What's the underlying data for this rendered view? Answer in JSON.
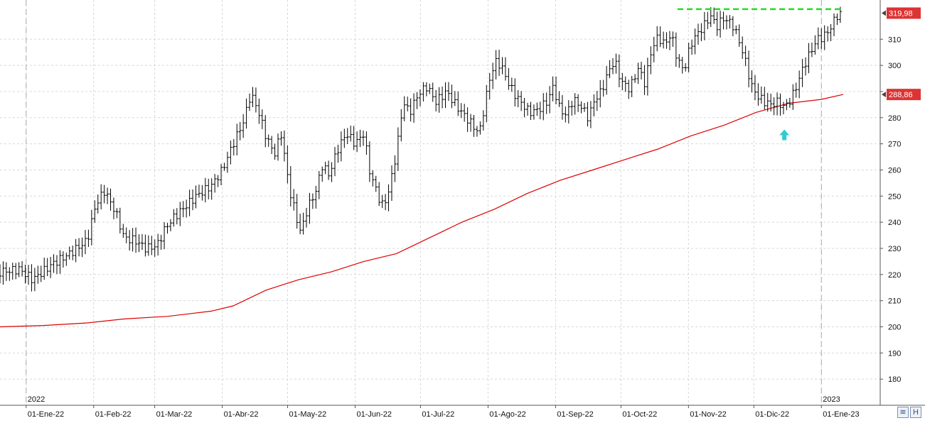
{
  "chart_data": {
    "type": "bar",
    "style": "ohlc-price-bars",
    "title": "",
    "xlabel": "",
    "ylabel": "",
    "ylim": [
      170,
      325
    ],
    "y_ticks": [
      "180",
      "190",
      "200",
      "210",
      "220",
      "230",
      "240",
      "250",
      "260",
      "270",
      "280",
      "290",
      "300",
      "310"
    ],
    "y_tick_values": [
      180,
      190,
      200,
      210,
      220,
      230,
      240,
      250,
      260,
      270,
      280,
      290,
      300,
      310
    ],
    "x_labels": [
      "01-Ene-22",
      "01-Feb-22",
      "01-Mar-22",
      "01-Abr-22",
      "01-May-22",
      "01-Jun-22",
      "01-Jul-22",
      "01-Ago-22",
      "01-Sep-22",
      "01-Oct-22",
      "01-Nov-22",
      "01-Dic-22",
      "01-Ene-23"
    ],
    "x_label_days": [
      0,
      31,
      59,
      90,
      120,
      151,
      181,
      212,
      243,
      273,
      304,
      334,
      365
    ],
    "year_markers": [
      {
        "label": "2022",
        "day": 0
      },
      {
        "label": "2023",
        "day": 365
      }
    ],
    "x_range_days": [
      -12,
      392
    ],
    "grid": true,
    "price_line": {
      "name": "",
      "points": [
        [
          -12,
          221
        ],
        [
          -3,
          222
        ],
        [
          3,
          218
        ],
        [
          12,
          224
        ],
        [
          20,
          228
        ],
        [
          28,
          233
        ],
        [
          32,
          247
        ],
        [
          36,
          252
        ],
        [
          41,
          244
        ],
        [
          45,
          234
        ],
        [
          50,
          233
        ],
        [
          55,
          230
        ],
        [
          60,
          231
        ],
        [
          64,
          238
        ],
        [
          68,
          242
        ],
        [
          73,
          246
        ],
        [
          78,
          250
        ],
        [
          85,
          254
        ],
        [
          90,
          260
        ],
        [
          95,
          270
        ],
        [
          100,
          279
        ],
        [
          103,
          289
        ],
        [
          106,
          284
        ],
        [
          110,
          273
        ],
        [
          114,
          266
        ],
        [
          117,
          274
        ],
        [
          121,
          252
        ],
        [
          124,
          242
        ],
        [
          126,
          236
        ],
        [
          129,
          245
        ],
        [
          133,
          252
        ],
        [
          136,
          262
        ],
        [
          139,
          258
        ],
        [
          143,
          268
        ],
        [
          147,
          274
        ],
        [
          151,
          270
        ],
        [
          155,
          274
        ],
        [
          158,
          258
        ],
        [
          161,
          252
        ],
        [
          163,
          246
        ],
        [
          166,
          250
        ],
        [
          170,
          267
        ],
        [
          173,
          286
        ],
        [
          176,
          282
        ],
        [
          180,
          289
        ],
        [
          184,
          292
        ],
        [
          188,
          286
        ],
        [
          193,
          290
        ],
        [
          197,
          285
        ],
        [
          200,
          282
        ],
        [
          204,
          278
        ],
        [
          208,
          274
        ],
        [
          210,
          283
        ],
        [
          213,
          296
        ],
        [
          216,
          302
        ],
        [
          219,
          298
        ],
        [
          222,
          292
        ],
        [
          225,
          288
        ],
        [
          228,
          285
        ],
        [
          231,
          282
        ],
        [
          235,
          283
        ],
        [
          239,
          286
        ],
        [
          242,
          292
        ],
        [
          245,
          283
        ],
        [
          248,
          281
        ],
        [
          251,
          287
        ],
        [
          255,
          284
        ],
        [
          258,
          280
        ],
        [
          261,
          287
        ],
        [
          264,
          290
        ],
        [
          267,
          297
        ],
        [
          270,
          302
        ],
        [
          273,
          294
        ],
        [
          277,
          291
        ],
        [
          281,
          299
        ],
        [
          284,
          293
        ],
        [
          287,
          306
        ],
        [
          290,
          311
        ],
        [
          293,
          308
        ],
        [
          296,
          312
        ],
        [
          299,
          302
        ],
        [
          302,
          298
        ],
        [
          305,
          308
        ],
        [
          308,
          312
        ],
        [
          311,
          315
        ],
        [
          314,
          319
        ],
        [
          317,
          315
        ],
        [
          320,
          318
        ],
        [
          324,
          316
        ],
        [
          327,
          310
        ],
        [
          330,
          302
        ],
        [
          333,
          292
        ],
        [
          336,
          288
        ],
        [
          339,
          286
        ],
        [
          342,
          285
        ],
        [
          345,
          286
        ],
        [
          348,
          284
        ],
        [
          351,
          287
        ],
        [
          354,
          293
        ],
        [
          357,
          300
        ],
        [
          360,
          305
        ],
        [
          363,
          310
        ],
        [
          366,
          311
        ],
        [
          369,
          314
        ],
        [
          372,
          319
        ],
        [
          375,
          320
        ]
      ]
    },
    "moving_average": {
      "name": "",
      "color": "#dd0000",
      "points": [
        [
          -12,
          200
        ],
        [
          8,
          200.5
        ],
        [
          28,
          201.5
        ],
        [
          45,
          203
        ],
        [
          65,
          204
        ],
        [
          85,
          206
        ],
        [
          95,
          208
        ],
        [
          110,
          214
        ],
        [
          125,
          218
        ],
        [
          140,
          221
        ],
        [
          155,
          225
        ],
        [
          170,
          228
        ],
        [
          185,
          234
        ],
        [
          200,
          240
        ],
        [
          215,
          245
        ],
        [
          230,
          251
        ],
        [
          245,
          256
        ],
        [
          260,
          260
        ],
        [
          275,
          264
        ],
        [
          290,
          268
        ],
        [
          305,
          273
        ],
        [
          320,
          277
        ],
        [
          335,
          282
        ],
        [
          350,
          285.5
        ],
        [
          365,
          287
        ],
        [
          375,
          288.86
        ]
      ]
    },
    "resistance_line": {
      "y": 321.5,
      "from_day": 299,
      "to_day": 375,
      "color": "#22dd22"
    },
    "signal_arrow": {
      "day": 348,
      "y": 273,
      "color": "#33cccc",
      "direction": "up"
    },
    "price_tags": [
      {
        "text": "319,98",
        "value": 319.98,
        "color": "#dd3333"
      },
      {
        "text": "288,86",
        "value": 288.86,
        "color": "#dd3333"
      }
    ]
  },
  "bottom_right_labels": {
    "trend_icon": "≋",
    "save_icon": "H"
  },
  "colors": {
    "bars": "#000000",
    "grid": "#d8d8d8",
    "axis_text": "#111111",
    "tag_bg": "#e05050"
  }
}
